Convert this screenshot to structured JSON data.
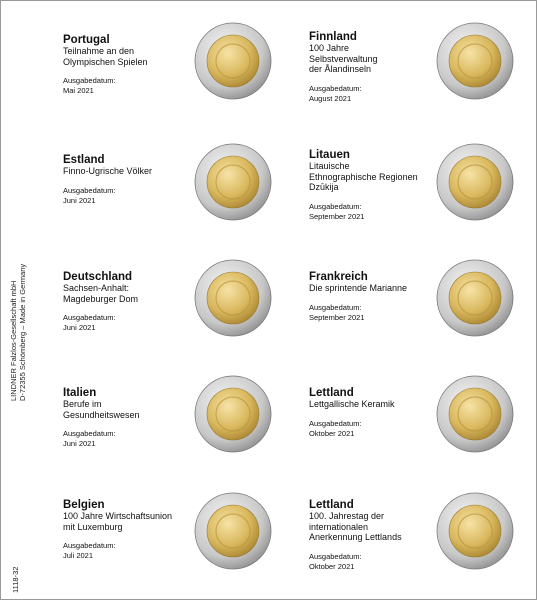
{
  "margin": {
    "publisher": [
      "LINDNER Falzlos-Gesellschaft mbH",
      "D-72355 Schömberg – Made in Germany"
    ],
    "code": "1118-32"
  },
  "columns": [
    [
      {
        "country": "Portugal",
        "description": [
          "Teilnahme an den",
          "Olympischen Spielen"
        ],
        "date_label": "Ausgabedatum:",
        "date": "Mai 2021"
      },
      {
        "country": "Estland",
        "description": [
          "Finno-Ugrische Völker"
        ],
        "date_label": "Ausgabedatum:",
        "date": "Juni 2021"
      },
      {
        "country": "Deutschland",
        "description": [
          "Sachsen-Anhalt:",
          "Magdeburger Dom"
        ],
        "date_label": "Ausgabedatum:",
        "date": "Juni 2021"
      },
      {
        "country": "Italien",
        "description": [
          "Berufe im",
          "Gesundheitswesen"
        ],
        "date_label": "Ausgabedatum:",
        "date": "Juni 2021"
      },
      {
        "country": "Belgien",
        "description": [
          "100 Jahre Wirtschaftsunion",
          "mit Luxemburg"
        ],
        "date_label": "Ausgabedatum:",
        "date": "Juli 2021"
      }
    ],
    [
      {
        "country": "Finnland",
        "description": [
          "100 Jahre",
          "Selbstverwaltung",
          "der Ålandinseln"
        ],
        "date_label": "Ausgabedatum:",
        "date": "August 2021"
      },
      {
        "country": "Litauen",
        "description": [
          "Litauische",
          "Ethnographische Regionen",
          "Dzūkija"
        ],
        "date_label": "Ausgabedatum:",
        "date": "September 2021"
      },
      {
        "country": "Frankreich",
        "description": [
          "Die sprintende Marianne"
        ],
        "date_label": "Ausgabedatum:",
        "date": "September 2021"
      },
      {
        "country": "Lettland",
        "description": [
          "Lettgallische Keramik"
        ],
        "date_label": "Ausgabedatum:",
        "date": "Oktober 2021"
      },
      {
        "country": "Lettland",
        "description": [
          "100. Jahrestag der",
          "internationalen",
          "Anerkennung Lettlands"
        ],
        "date_label": "Ausgabedatum:",
        "date": "Oktober 2021"
      }
    ]
  ]
}
